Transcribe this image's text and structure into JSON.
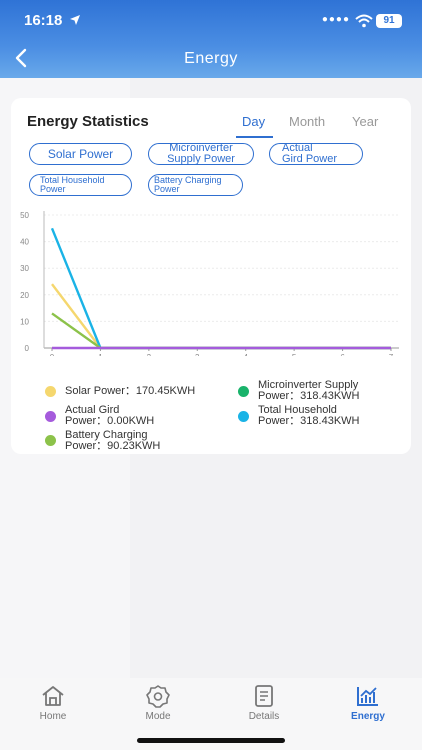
{
  "status_bar": {
    "time": "16:18",
    "battery": "91",
    "location_icon": "location-arrow-icon",
    "wifi_icon": "wifi-icon"
  },
  "header": {
    "title": "Energy",
    "back_icon": "chevron-left-icon"
  },
  "card": {
    "title": "Energy Statistics",
    "tabs": [
      {
        "label": "Day",
        "active": true
      },
      {
        "label": "Month",
        "active": false
      },
      {
        "label": "Year",
        "active": false
      }
    ],
    "chips": [
      {
        "line1": "Solar Power",
        "line2": ""
      },
      {
        "line1": "Microinverter",
        "line2": "Supply Power"
      },
      {
        "line1": "Actual",
        "line2": "Gird Power"
      },
      {
        "line1": "Total Household",
        "line2": "Power"
      },
      {
        "line1": "Battery Charging",
        "line2": "Power"
      }
    ]
  },
  "chart_data": {
    "type": "line",
    "x": [
      0,
      1,
      2,
      3,
      4,
      5,
      6,
      7
    ],
    "ylim": [
      0,
      50
    ],
    "yticks": [
      "0",
      "10",
      "20",
      "30",
      "40",
      "50"
    ],
    "xticks": [
      "0",
      "1",
      "2",
      "3",
      "4",
      "5",
      "6",
      "7"
    ],
    "grid": true,
    "series": [
      {
        "color": "#f5d76e",
        "values": [
          24,
          0,
          0,
          0,
          0,
          0,
          0,
          0
        ]
      },
      {
        "color": "#1ab3e6",
        "values": [
          45,
          0,
          0,
          0,
          0,
          0,
          0,
          0
        ]
      },
      {
        "color": "#8cc24a",
        "values": [
          13,
          0,
          0,
          0,
          0,
          0,
          0,
          0
        ]
      },
      {
        "color": "#a55bdc",
        "values": [
          0,
          0,
          0,
          0,
          0,
          0,
          0,
          0
        ]
      }
    ]
  },
  "legend": [
    {
      "line1": "Solar Power：170.45KWH",
      "line2": "",
      "color": "#f5d76e"
    },
    {
      "line1": "Microinverter Supply",
      "line2": "Power：318.43KWH",
      "color": "#19b36b"
    },
    {
      "line1": "Actual Gird",
      "line2": "Power：0.00KWH",
      "color": "#a55bdc"
    },
    {
      "line1": "Total Household",
      "line2": "Power：318.43KWH",
      "color": "#1ab3e6"
    },
    {
      "line1": "Battery Charging",
      "line2": "Power：90.23KWH",
      "color": "#8cc24a"
    }
  ],
  "tabbar": {
    "items": [
      {
        "label": "Home",
        "icon": "home-icon",
        "active": false
      },
      {
        "label": "Mode",
        "icon": "gear-icon",
        "active": false
      },
      {
        "label": "Details",
        "icon": "document-icon",
        "active": false
      },
      {
        "label": "Energy",
        "icon": "chart-icon",
        "active": true
      }
    ]
  }
}
